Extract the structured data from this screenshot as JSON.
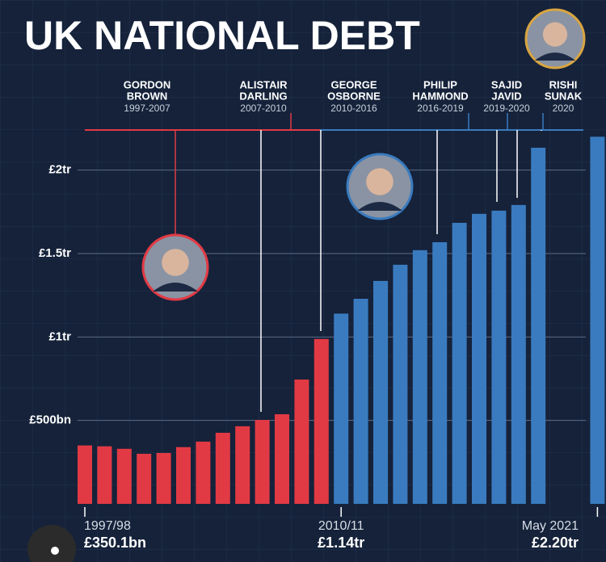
{
  "chart_data": {
    "type": "bar",
    "title": "UK NATIONAL DEBT",
    "categories": [
      "1997/98",
      null,
      null,
      null,
      null,
      null,
      null,
      null,
      null,
      null,
      null,
      null,
      null,
      "2010/11",
      null,
      null,
      null,
      null,
      null,
      null,
      null,
      null,
      null,
      null,
      null,
      null,
      "May 2021"
    ],
    "values": [
      350.1,
      345,
      330,
      300,
      305,
      340,
      373,
      426,
      465,
      503,
      537,
      745,
      988,
      1140,
      1229,
      1336,
      1433,
      1520,
      1568,
      1684,
      1738,
      1757,
      1791,
      2134,
      null,
      null,
      2200
    ],
    "value_labels": [
      "£350.1bn",
      null,
      null,
      null,
      null,
      null,
      null,
      null,
      null,
      null,
      null,
      null,
      null,
      "£1.14tr",
      null,
      null,
      null,
      null,
      null,
      null,
      null,
      null,
      null,
      null,
      null,
      null,
      "£2.20tr"
    ],
    "colors": [
      "#e23a44",
      "#e23a44",
      "#e23a44",
      "#e23a44",
      "#e23a44",
      "#e23a44",
      "#e23a44",
      "#e23a44",
      "#e23a44",
      "#e23a44",
      "#e23a44",
      "#e23a44",
      "#e23a44",
      "#3a7bbf",
      "#3a7bbf",
      "#3a7bbf",
      "#3a7bbf",
      "#3a7bbf",
      "#3a7bbf",
      "#3a7bbf",
      "#3a7bbf",
      "#3a7bbf",
      "#3a7bbf",
      "#3a7bbf",
      "#3a7bbf",
      "#3a7bbf",
      "#3a7bbf"
    ],
    "ylim": [
      0,
      2250
    ],
    "yticks": [
      {
        "value": 500,
        "label": "£500bn"
      },
      {
        "value": 1000,
        "label": "£1tr"
      },
      {
        "value": 1500,
        "label": "£1.5tr"
      },
      {
        "value": 2000,
        "label": "£2tr"
      }
    ],
    "grid": true,
    "chancellors": [
      {
        "name": [
          "GORDON",
          "BROWN"
        ],
        "years": "1997-2007"
      },
      {
        "name": [
          "ALISTAIR",
          "DARLING"
        ],
        "years": "2007-2010"
      },
      {
        "name": [
          "GEORGE",
          "OSBORNE"
        ],
        "years": "2010-2016"
      },
      {
        "name": [
          "PHILIP",
          "HAMMOND"
        ],
        "years": "2016-2019"
      },
      {
        "name": [
          "SAJID",
          "JAVID"
        ],
        "years": "2019-2020"
      },
      {
        "name": [
          "RISHI",
          "SUNAK"
        ],
        "years": "2020"
      }
    ]
  }
}
